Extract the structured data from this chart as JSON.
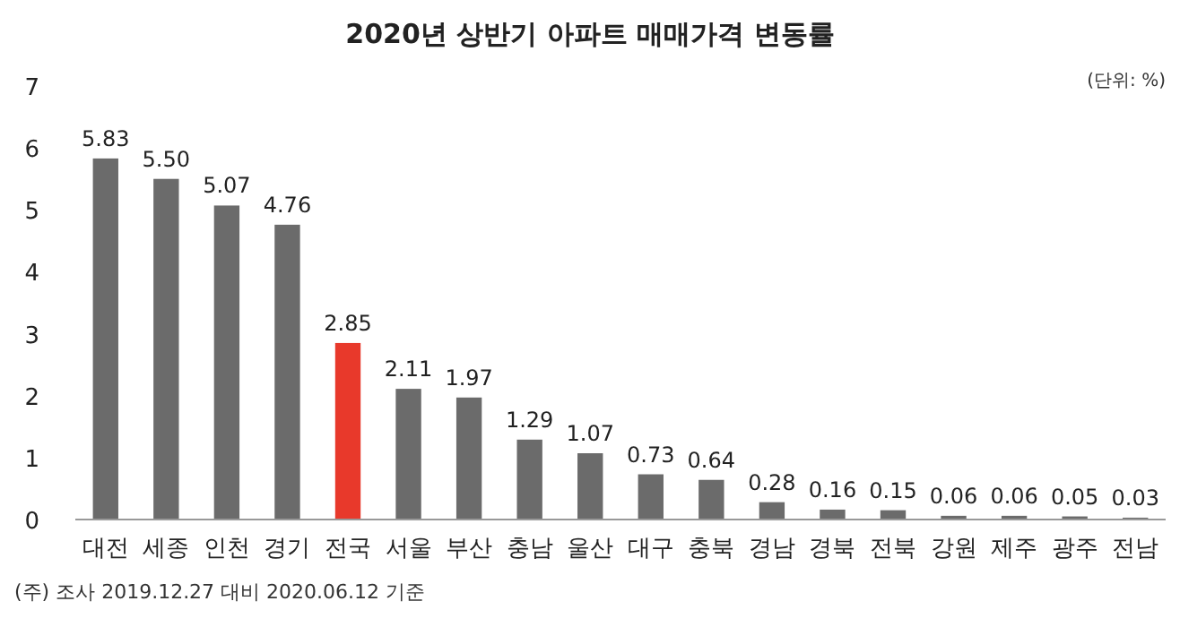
{
  "chart_data": {
    "type": "bar",
    "title": "2020년 상반기 아파트 매매가격 변동률",
    "ylabel": "(단위: %)",
    "annotations": [
      "(주) 조사 2019.12.27 대비 2020.06.12 기준"
    ],
    "categories": [
      "대전",
      "세종",
      "인천",
      "경기",
      "전국",
      "서울",
      "부산",
      "충남",
      "울산",
      "대구",
      "충북",
      "경남",
      "경북",
      "전북",
      "강원",
      "제주",
      "광주",
      "전남"
    ],
    "values": [
      5.83,
      5.5,
      5.07,
      4.76,
      2.85,
      2.11,
      1.97,
      1.29,
      1.07,
      0.73,
      0.64,
      0.28,
      0.16,
      0.15,
      0.06,
      0.06,
      0.05,
      0.03
    ],
    "value_labels": [
      "5.83",
      "5.50",
      "5.07",
      "4.76",
      "2.85",
      "2.11",
      "1.97",
      "1.29",
      "1.07",
      "0.73",
      "0.64",
      "0.28",
      "0.16",
      "0.15",
      "0.06",
      "0.06",
      "0.05",
      "0.03"
    ],
    "colors": [
      "#6b6b6b",
      "#6b6b6b",
      "#6b6b6b",
      "#6b6b6b",
      "#e8392b",
      "#6b6b6b",
      "#6b6b6b",
      "#6b6b6b",
      "#6b6b6b",
      "#6b6b6b",
      "#6b6b6b",
      "#6b6b6b",
      "#6b6b6b",
      "#6b6b6b",
      "#6b6b6b",
      "#6b6b6b",
      "#6b6b6b",
      "#6b6b6b"
    ],
    "ylim": [
      0,
      7
    ],
    "yticks": [
      0,
      1,
      2,
      3,
      4,
      5,
      6,
      7
    ]
  }
}
